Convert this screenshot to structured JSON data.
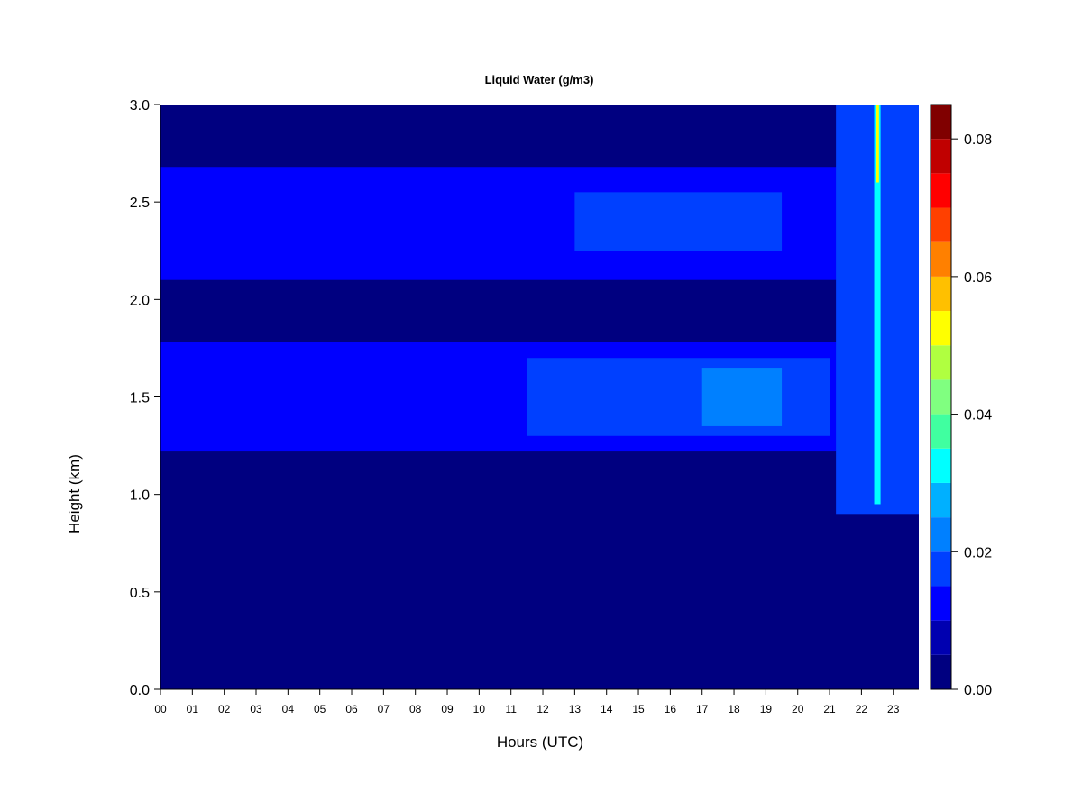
{
  "chart_data": {
    "type": "heatmap",
    "title": "Liquid Water (g/m3)",
    "xlabel": "Hours (UTC)",
    "ylabel": "Height (km)",
    "x_ticks": [
      "00",
      "01",
      "02",
      "03",
      "04",
      "05",
      "06",
      "07",
      "08",
      "09",
      "10",
      "11",
      "12",
      "13",
      "14",
      "15",
      "16",
      "17",
      "18",
      "19",
      "20",
      "21",
      "22",
      "23"
    ],
    "xlim": [
      0,
      23.8
    ],
    "y_ticks": [
      "0.0",
      "0.5",
      "1.0",
      "1.5",
      "2.0",
      "2.5",
      "3.0"
    ],
    "ylim": [
      0,
      3.0
    ],
    "colorbar": {
      "ticks": [
        "0.00",
        "0.02",
        "0.04",
        "0.06",
        "0.08"
      ],
      "range": [
        0,
        0.085
      ],
      "levels": [
        0.0,
        0.005,
        0.01,
        0.015,
        0.02,
        0.025,
        0.03,
        0.035,
        0.04,
        0.045,
        0.05,
        0.055,
        0.06,
        0.065,
        0.07,
        0.075,
        0.08,
        0.085
      ],
      "colors": [
        "#000080",
        "#0000B0",
        "#0000FF",
        "#0040FF",
        "#0080FF",
        "#00B0FF",
        "#00FFFF",
        "#40FFA0",
        "#80FF80",
        "#B0FF40",
        "#FFFF00",
        "#FFC000",
        "#FF8000",
        "#FF4000",
        "#FF0000",
        "#C00000",
        "#800000"
      ]
    },
    "layers": [
      {
        "x_start": 0.0,
        "x_end": 23.8,
        "height_low": 2.1,
        "height_high": 2.68,
        "value": 0.012
      },
      {
        "x_start": 0.0,
        "x_end": 23.8,
        "height_low": 1.22,
        "height_high": 1.78,
        "value": 0.012
      },
      {
        "x_start": 13.0,
        "x_end": 19.5,
        "height_low": 2.25,
        "height_high": 2.55,
        "value": 0.018
      },
      {
        "x_start": 11.5,
        "x_end": 21.0,
        "height_low": 1.3,
        "height_high": 1.7,
        "value": 0.018
      },
      {
        "x_start": 17.0,
        "x_end": 19.5,
        "height_low": 1.35,
        "height_high": 1.65,
        "value": 0.024
      },
      {
        "x_start": 21.2,
        "x_end": 23.8,
        "height_low": 0.9,
        "height_high": 3.0,
        "value": 0.015
      },
      {
        "x_start": 22.4,
        "x_end": 22.6,
        "height_low": 0.95,
        "height_high": 3.0,
        "value": 0.03
      },
      {
        "x_start": 22.45,
        "x_end": 22.55,
        "height_low": 2.6,
        "height_high": 3.0,
        "value": 0.05
      }
    ]
  }
}
